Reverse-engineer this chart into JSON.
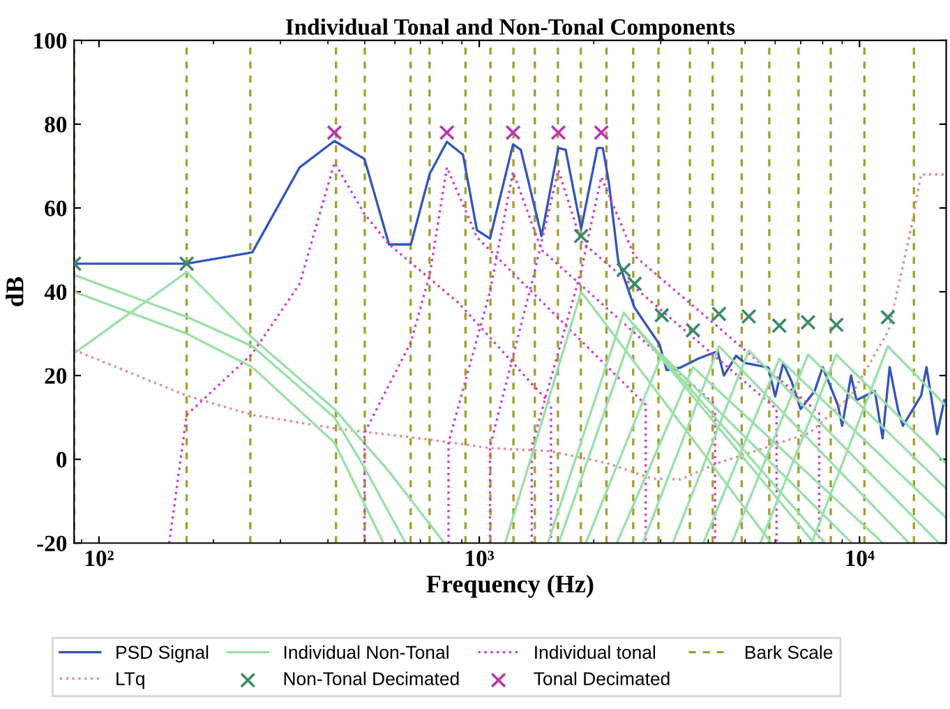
{
  "chart_data": {
    "type": "line",
    "title": "Individual Tonal and Non-Tonal Components",
    "xlabel": "Frequency (Hz)",
    "ylabel": "dB",
    "log": "x",
    "xlim": [
      86,
      16900
    ],
    "xticks": [
      {
        "value": 100,
        "label": "10²"
      },
      {
        "value": 1000,
        "label": "10³"
      },
      {
        "value": 10000,
        "label": "10⁴"
      }
    ],
    "ylim": [
      -20,
      100
    ],
    "yticks": [
      -20,
      0,
      20,
      40,
      60,
      80,
      100
    ],
    "legend": "bottom",
    "series": [
      {
        "name": "PSD Signal",
        "color": "#3355bb",
        "type": "line",
        "line_style": "solid",
        "x": [
          86,
          170,
          253,
          337,
          416,
          499,
          579,
          661,
          741,
          822,
          906,
          986,
          1067,
          1227,
          1286,
          1458,
          1614,
          1687,
          1853,
          2044,
          2113,
          2190,
          2319,
          2557,
          2980,
          3110,
          3380,
          3782,
          4235,
          4400,
          4735,
          5000,
          5757,
          6000,
          6300,
          6625,
          7000,
          7620,
          8000,
          8767,
          9000,
          9500,
          9814,
          10970,
          11500,
          12000,
          12620,
          13000,
          14520,
          15000,
          16000,
          16710
        ],
        "values": [
          46.7,
          46.7,
          49.4,
          69.7,
          76,
          71.7,
          51.3,
          51.3,
          68.2,
          75.8,
          72.7,
          54.7,
          52.7,
          75.2,
          73.9,
          53.3,
          74.3,
          73.9,
          55,
          74.3,
          74.3,
          66.3,
          47.4,
          36.3,
          27.4,
          21.3,
          21.9,
          24.1,
          25.8,
          20,
          24.7,
          23,
          21.9,
          15,
          23,
          18.6,
          12,
          16.3,
          22,
          13,
          8,
          20,
          14.1,
          16.3,
          5,
          22,
          11.9,
          8,
          15.2,
          22,
          6,
          14.1
        ]
      },
      {
        "name": "LTq",
        "color": "#e0908f",
        "type": "line",
        "line_style": "dotted",
        "x": [
          86,
          170,
          253,
          416,
          741,
          1067,
          1546,
          2165,
          2850,
          3380,
          4235,
          5280,
          7390,
          9500,
          11930,
          13750,
          14520,
          16900
        ],
        "values": [
          26.1,
          15.2,
          10.6,
          7.4,
          4.7,
          2.7,
          1.9,
          -0.9,
          -4.6,
          -4.8,
          -0.9,
          1.9,
          6.3,
          15.2,
          30.8,
          56.3,
          68,
          68
        ]
      },
      {
        "name": "Individual Non-Tonal",
        "color": "#99e0a8",
        "type": "line",
        "line_style": "solid",
        "x": [
          86,
          170,
          253,
          416,
          580,
          810
        ],
        "values": [
          25.3,
          44.7,
          29,
          12,
          -3,
          -20
        ]
      },
      {
        "name": "Non-Tonal Decimated",
        "color": "#3a8a6a",
        "type": "scatter",
        "marker": "cross",
        "x": [
          86,
          170,
          1853,
          2397,
          2562,
          3020,
          3648,
          4270,
          5115,
          6150,
          7320,
          8690,
          11870
        ],
        "values": [
          46.7,
          46.7,
          53.3,
          45.2,
          41.9,
          34.4,
          30.8,
          34.7,
          34.1,
          31.9,
          32.7,
          32.1,
          33.9
        ]
      },
      {
        "name": "Individual tonal",
        "color": "#d040c8",
        "type": "line",
        "line_style": "dotted",
        "x": [
          153,
          170,
          253,
          337,
          416,
          499,
          579,
          881,
          1544,
          1544
        ],
        "values": [
          -20,
          10.6,
          25.2,
          41.9,
          70.8,
          58.6,
          51.3,
          37.4,
          13,
          -20
        ]
      },
      {
        "name": "Tonal Decimated",
        "color": "#c030b0",
        "type": "scatter",
        "marker": "cross",
        "x": [
          416,
          822,
          1227,
          1614,
          2094
        ],
        "values": [
          78,
          78,
          78,
          78,
          78
        ]
      },
      {
        "color": "#d040c8",
        "type": "line",
        "line_style": "dotted",
        "x": [
          499,
          499,
          661,
          741,
          822,
          906,
          986,
          2740,
          2740
        ],
        "values": [
          -20,
          6.3,
          28,
          44.1,
          69.7,
          60.8,
          53,
          13,
          -20
        ]
      },
      {
        "color": "#d040c8",
        "type": "line",
        "line_style": "dotted",
        "x": [
          830,
          830,
          1067,
          1227,
          1458,
          4170,
          4170
        ],
        "values": [
          -20,
          4,
          40,
          68.6,
          50,
          13,
          -20
        ]
      },
      {
        "color": "#d040c8",
        "type": "line",
        "line_style": "dotted",
        "x": [
          1067,
          1067,
          1400,
          1614,
          1853,
          6050,
          6050
        ],
        "values": [
          -20,
          3,
          45,
          69.1,
          52,
          12,
          -20
        ]
      },
      {
        "color": "#d040c8",
        "type": "line",
        "line_style": "dotted",
        "x": [
          1374,
          1374,
          1853,
          2094,
          2557,
          7830,
          7830
        ],
        "values": [
          -20,
          3,
          45,
          67.4,
          48.6,
          11,
          -20
        ]
      },
      {
        "color": "#99e0a8",
        "type": "line",
        "line_style": "solid",
        "x": [
          86,
          170,
          253,
          416,
          499,
          640
        ],
        "values": [
          44,
          34,
          27,
          10,
          -2,
          -20
        ]
      },
      {
        "color": "#99e0a8",
        "type": "line",
        "line_style": "solid",
        "x": [
          86,
          170,
          253,
          416,
          560
        ],
        "values": [
          40,
          30,
          22,
          4,
          -20
        ]
      },
      {
        "color": "#99e0a8",
        "type": "line",
        "line_style": "solid",
        "x": [
          1170,
          1853,
          5860
        ],
        "values": [
          -20,
          40,
          -20
        ]
      },
      {
        "color": "#99e0a8",
        "type": "line",
        "line_style": "solid",
        "x": [
          1514,
          2397,
          7590
        ],
        "values": [
          -20,
          35,
          -20
        ]
      },
      {
        "color": "#99e0a8",
        "type": "line",
        "line_style": "solid",
        "x": [
          1618,
          2562,
          8110
        ],
        "values": [
          -20,
          32,
          -20
        ]
      },
      {
        "color": "#99e0a8",
        "type": "line",
        "line_style": "solid",
        "x": [
          1905,
          3020,
          9550
        ],
        "values": [
          -20,
          25,
          -20
        ]
      },
      {
        "color": "#99e0a8",
        "type": "line",
        "line_style": "solid",
        "x": [
          2300,
          3648,
          11530
        ],
        "values": [
          -20,
          22,
          -20
        ]
      },
      {
        "color": "#99e0a8",
        "type": "line",
        "line_style": "solid",
        "x": [
          2692,
          4270,
          13490
        ],
        "values": [
          -20,
          27,
          -20
        ]
      },
      {
        "color": "#99e0a8",
        "type": "line",
        "line_style": "solid",
        "x": [
          3228,
          5115,
          16180
        ],
        "values": [
          -20,
          26,
          -20
        ]
      },
      {
        "color": "#99e0a8",
        "type": "line",
        "line_style": "solid",
        "x": [
          3882,
          6150,
          16900
        ],
        "values": [
          -20,
          24,
          -14
        ]
      },
      {
        "color": "#99e0a8",
        "type": "line",
        "line_style": "solid",
        "x": [
          4613,
          7320,
          16900
        ],
        "values": [
          -20,
          25,
          -7
        ]
      },
      {
        "color": "#99e0a8",
        "type": "line",
        "line_style": "solid",
        "x": [
          5480,
          8690,
          16900
        ],
        "values": [
          -20,
          25,
          -1
        ]
      },
      {
        "color": "#99e0a8",
        "type": "line",
        "line_style": "solid",
        "x": [
          7480,
          11870,
          16900
        ],
        "values": [
          -20,
          27,
          12.7
        ]
      }
    ],
    "ref_lines": [
      {
        "axis": "x",
        "value": 86,
        "label": "Bark Scale",
        "color": "#a0a030",
        "line_style": "dashed"
      },
      {
        "axis": "x",
        "value": 170,
        "color": "#a0a030",
        "line_style": "dashed"
      },
      {
        "axis": "x",
        "value": 250,
        "color": "#a0a030",
        "line_style": "dashed"
      },
      {
        "axis": "x",
        "value": 420,
        "color": "#a0a030",
        "line_style": "dashed"
      },
      {
        "axis": "x",
        "value": 500,
        "color": "#a0a030",
        "line_style": "dashed"
      },
      {
        "axis": "x",
        "value": 660,
        "color": "#a0a030",
        "line_style": "dashed"
      },
      {
        "axis": "x",
        "value": 740,
        "color": "#a0a030",
        "line_style": "dashed"
      },
      {
        "axis": "x",
        "value": 920,
        "color": "#a0a030",
        "line_style": "dashed"
      },
      {
        "axis": "x",
        "value": 1070,
        "color": "#a0a030",
        "line_style": "dashed"
      },
      {
        "axis": "x",
        "value": 1230,
        "color": "#a0a030",
        "line_style": "dashed"
      },
      {
        "axis": "x",
        "value": 1400,
        "color": "#a0a030",
        "line_style": "dashed"
      },
      {
        "axis": "x",
        "value": 1610,
        "color": "#a0a030",
        "line_style": "dashed"
      },
      {
        "axis": "x",
        "value": 1850,
        "color": "#a0a030",
        "line_style": "dashed"
      },
      {
        "axis": "x",
        "value": 2160,
        "color": "#a0a030",
        "line_style": "dashed"
      },
      {
        "axis": "x",
        "value": 2540,
        "color": "#a0a030",
        "line_style": "dashed"
      },
      {
        "axis": "x",
        "value": 2960,
        "color": "#a0a030",
        "line_style": "dashed"
      },
      {
        "axis": "x",
        "value": 3580,
        "color": "#a0a030",
        "line_style": "dashed"
      },
      {
        "axis": "x",
        "value": 4110,
        "color": "#a0a030",
        "line_style": "dashed"
      },
      {
        "axis": "x",
        "value": 4900,
        "color": "#a0a030",
        "line_style": "dashed"
      },
      {
        "axis": "x",
        "value": 5790,
        "color": "#a0a030",
        "line_style": "dashed"
      },
      {
        "axis": "x",
        "value": 6910,
        "color": "#a0a030",
        "line_style": "dashed"
      },
      {
        "axis": "x",
        "value": 8400,
        "color": "#a0a030",
        "line_style": "dashed"
      },
      {
        "axis": "x",
        "value": 10300,
        "color": "#a0a030",
        "line_style": "dashed"
      },
      {
        "axis": "x",
        "value": 13900,
        "color": "#a0a030",
        "line_style": "dashed"
      }
    ]
  }
}
